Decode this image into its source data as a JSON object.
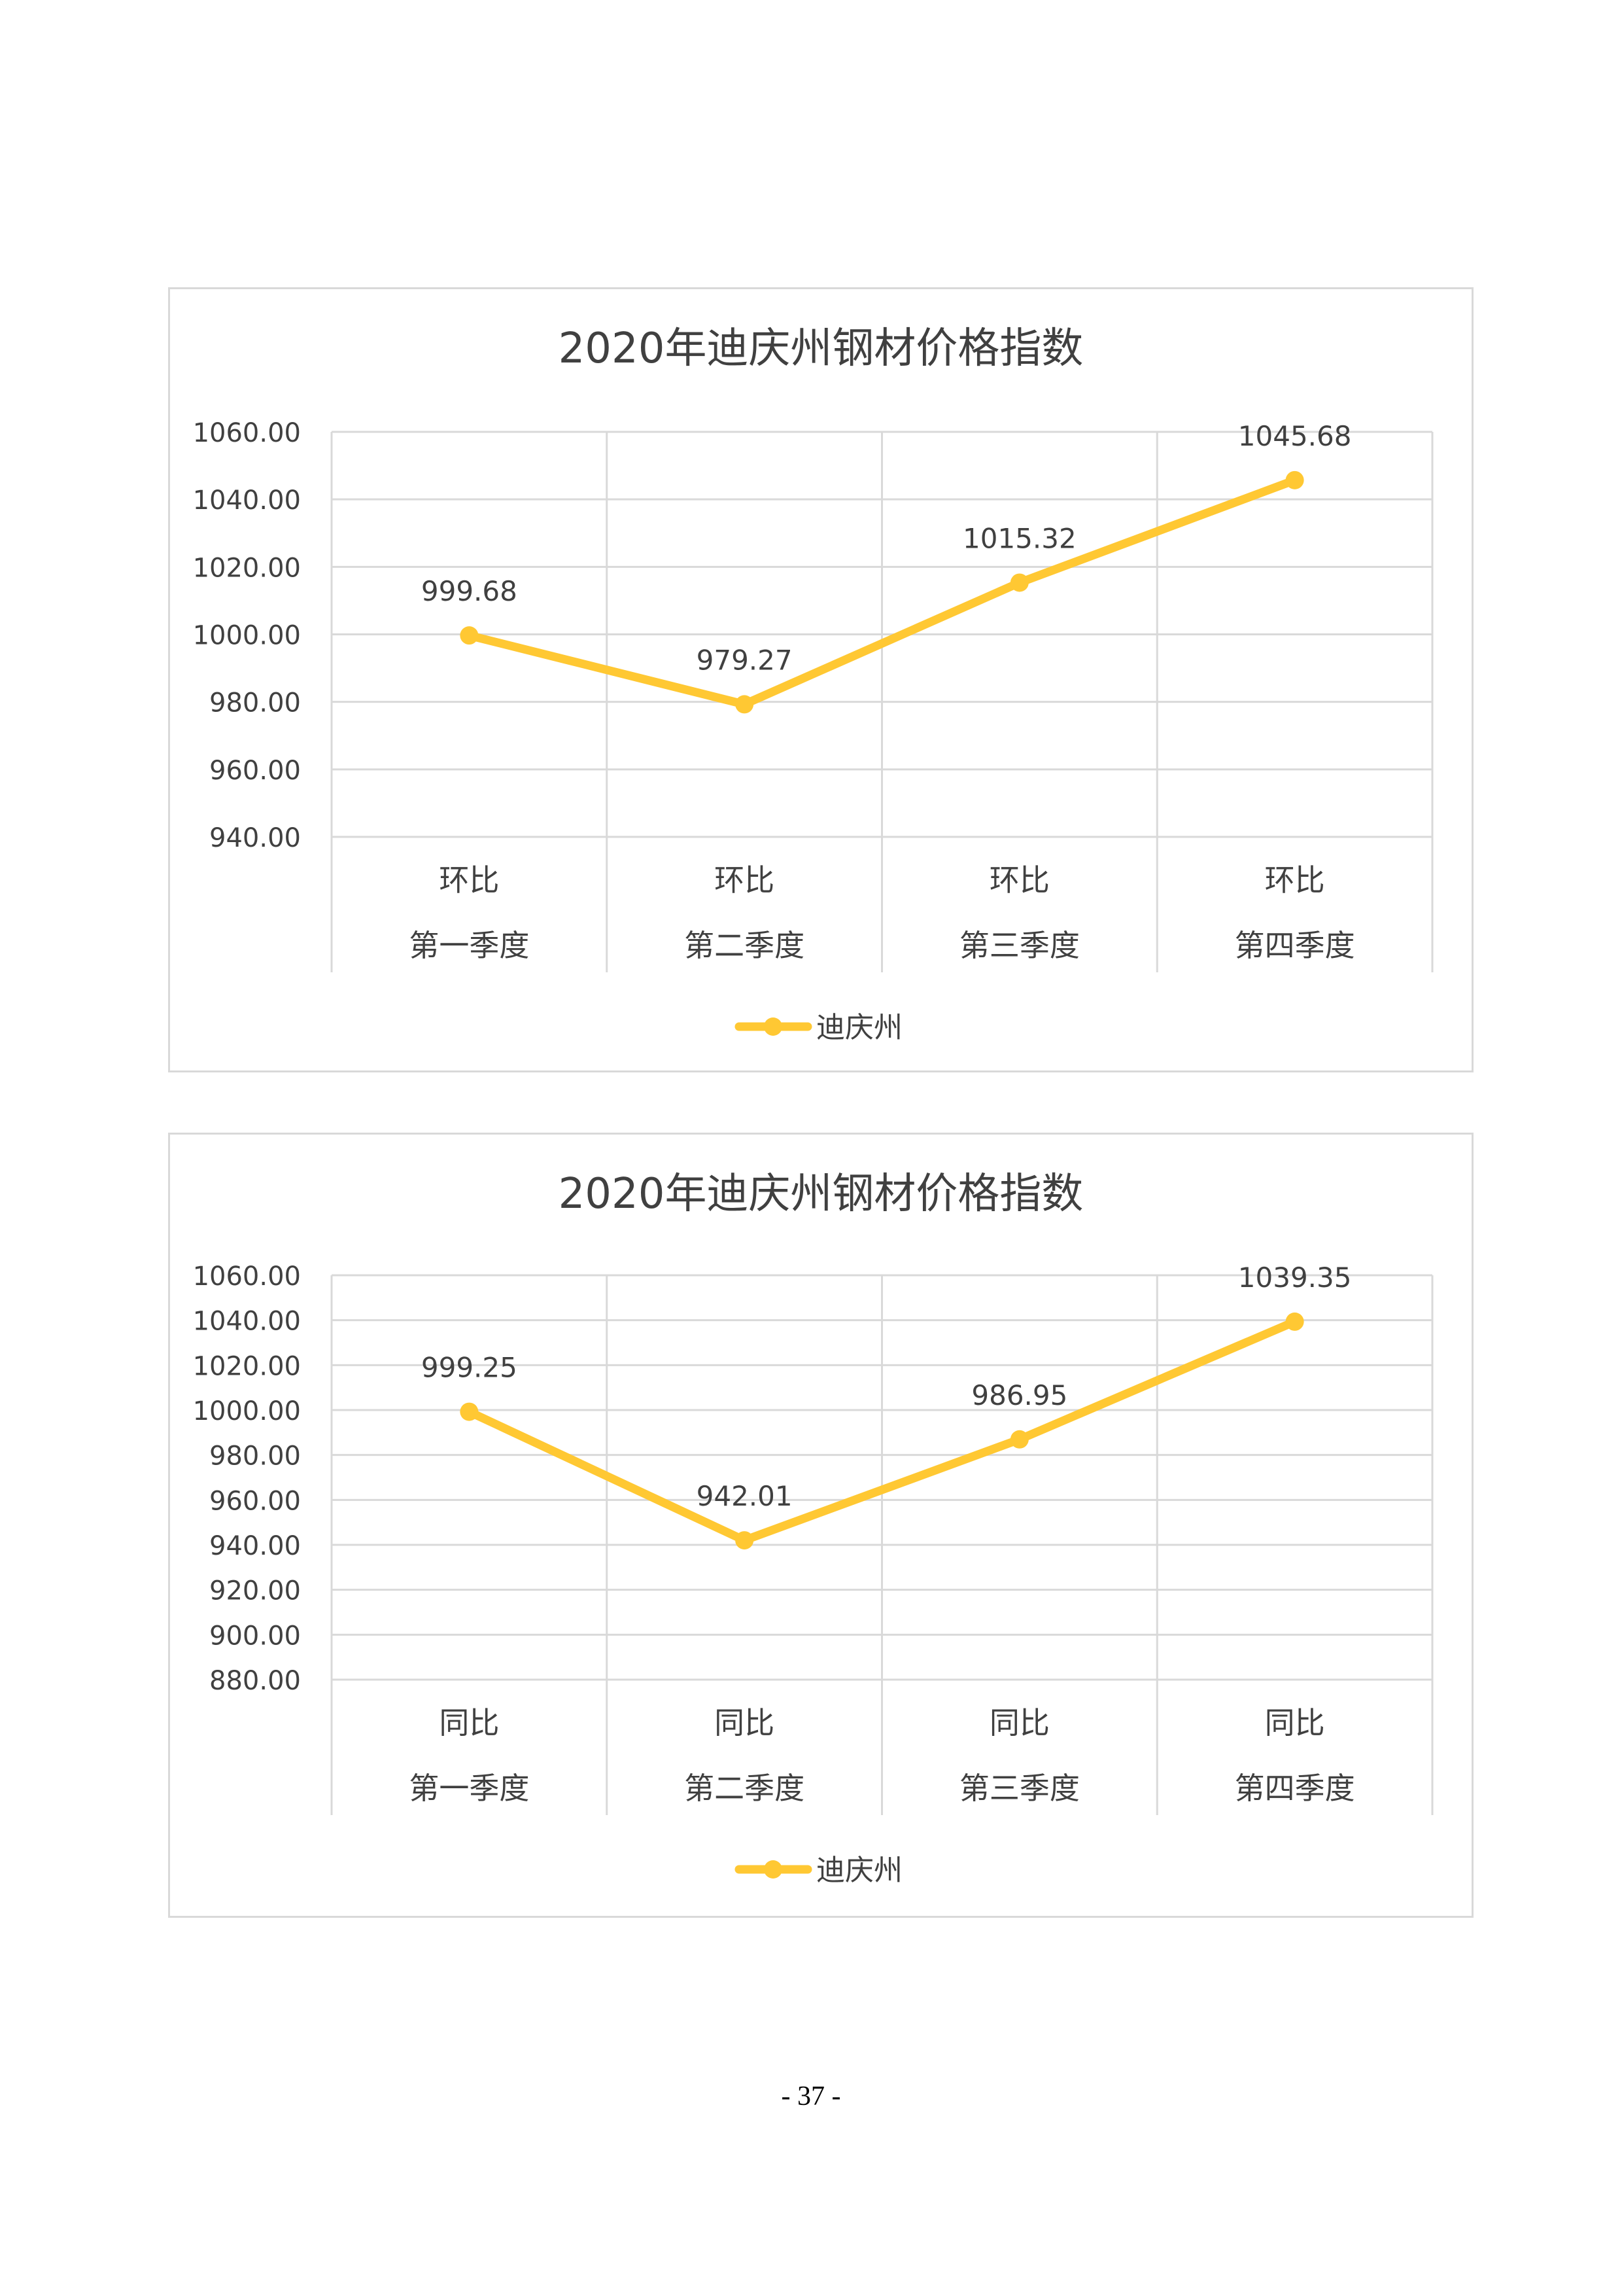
{
  "page": {
    "number": "- 37 -"
  },
  "chart_data": [
    {
      "type": "line",
      "title": "2020年迪庆州钢材价格指数",
      "categories": [
        [
          "环比",
          "第一季度"
        ],
        [
          "环比",
          "第二季度"
        ],
        [
          "环比",
          "第三季度"
        ],
        [
          "环比",
          "第四季度"
        ]
      ],
      "series": [
        {
          "name": "迪庆州",
          "values": [
            999.68,
            979.27,
            1015.32,
            1045.68
          ],
          "color": "#FFC833"
        }
      ],
      "data_labels": [
        "999.68",
        "979.27",
        "1015.32",
        "1045.68"
      ],
      "ylim": [
        940,
        1060
      ],
      "yticks": [
        940,
        960,
        980,
        1000,
        1020,
        1040,
        1060
      ],
      "ytick_labels": [
        "940.00",
        "960.00",
        "980.00",
        "1000.00",
        "1020.00",
        "1040.00",
        "1060.00"
      ],
      "xlabel": "",
      "ylabel": "",
      "grid": true,
      "legend": "bottom"
    },
    {
      "type": "line",
      "title": "2020年迪庆州钢材价格指数",
      "categories": [
        [
          "同比",
          "第一季度"
        ],
        [
          "同比",
          "第二季度"
        ],
        [
          "同比",
          "第三季度"
        ],
        [
          "同比",
          "第四季度"
        ]
      ],
      "series": [
        {
          "name": "迪庆州",
          "values": [
            999.25,
            942.01,
            986.95,
            1039.35
          ],
          "color": "#FFC833"
        }
      ],
      "data_labels": [
        "999.25",
        "942.01",
        "986.95",
        "1039.35"
      ],
      "ylim": [
        880,
        1060
      ],
      "yticks": [
        880,
        900,
        920,
        940,
        960,
        980,
        1000,
        1020,
        1040,
        1060
      ],
      "ytick_labels": [
        "880.00",
        "900.00",
        "920.00",
        "940.00",
        "960.00",
        "980.00",
        "1000.00",
        "1020.00",
        "1040.00",
        "1060.00"
      ],
      "xlabel": "",
      "ylabel": "",
      "grid": true,
      "legend": "bottom"
    }
  ]
}
